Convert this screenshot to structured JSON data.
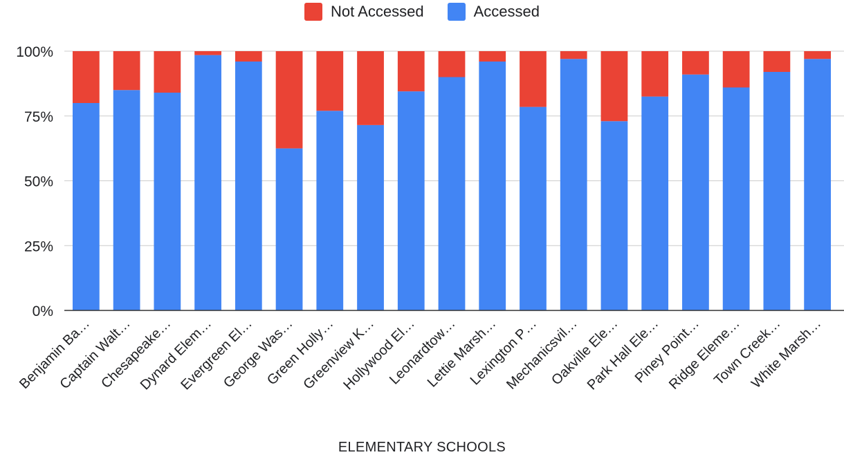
{
  "chart_data": {
    "type": "bar",
    "stacked": true,
    "percent_stacked": true,
    "xlabel": "ELEMENTARY SCHOOLS",
    "ylabel": "",
    "ylim": [
      0,
      100
    ],
    "y_ticks": [
      "0%",
      "25%",
      "50%",
      "75%",
      "100%"
    ],
    "y_tick_values": [
      0,
      25,
      50,
      75,
      100
    ],
    "legend_position": "top",
    "grid": true,
    "categories": [
      "Benjamin Ba…",
      "Captain Walt…",
      "Chesapeake…",
      "Dynard Elem…",
      "Evergreen El…",
      "George Was…",
      "Green Holly…",
      "Greenview K…",
      "Hollywood El…",
      "Leonardtow…",
      "Lettie Marsh…",
      "Lexington P…",
      "Mechanicsvil…",
      "Oakville Ele…",
      "Park Hall Ele…",
      "Piney Point…",
      "Ridge Eleme…",
      "Town Creek…",
      "White Marsh…"
    ],
    "series": [
      {
        "name": "Accessed",
        "color": "#4285f4",
        "values": [
          80,
          85,
          84,
          98.5,
          96,
          62.5,
          77,
          71.5,
          84.5,
          90,
          96,
          78.5,
          97,
          73,
          82.5,
          91,
          86,
          92,
          97
        ]
      },
      {
        "name": "Not Accessed",
        "color": "#ea4335",
        "values": [
          20,
          15,
          16,
          1.5,
          4,
          37.5,
          23,
          28.5,
          15.5,
          10,
          4,
          21.5,
          3,
          27,
          17.5,
          9,
          14,
          8,
          3
        ]
      }
    ]
  },
  "legend": {
    "items": [
      {
        "label": "Not Accessed",
        "color": "#ea4335"
      },
      {
        "label": "Accessed",
        "color": "#4285f4"
      }
    ]
  }
}
